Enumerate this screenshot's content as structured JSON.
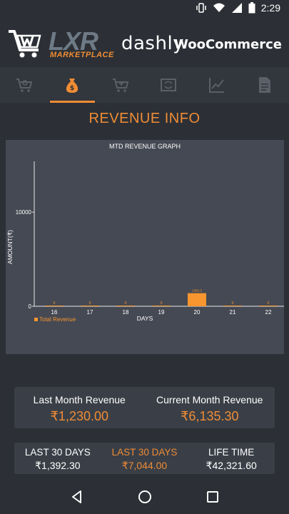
{
  "status_bar": {
    "time": "2:29",
    "icons": [
      "vibrate-icon",
      "wifi-icon",
      "signal-icon",
      "battery-icon"
    ]
  },
  "header": {
    "brand_main": "LXR",
    "brand_sub": "MARKETPLACE",
    "product": "dashly",
    "platform": "WooCommerce"
  },
  "tabs": [
    {
      "icon": "cart-search-icon",
      "active": false
    },
    {
      "icon": "money-bag-icon",
      "active": true
    },
    {
      "icon": "cart-plus-icon",
      "active": false
    },
    {
      "icon": "refresh-box-icon",
      "active": false
    },
    {
      "icon": "trend-chart-icon",
      "active": false
    },
    {
      "icon": "document-icon",
      "active": false
    }
  ],
  "section_title": "REVENUE INFO",
  "chart_data": {
    "type": "bar",
    "title": "MTD REVENUE GRAPH",
    "xlabel": "DAYS",
    "ylabel": "AMOUNT(₹)",
    "categories": [
      "16",
      "17",
      "18",
      "19",
      "20",
      "21",
      "22"
    ],
    "series": [
      {
        "name": "Total Revenue",
        "values": [
          0,
          0,
          0,
          0,
          1392.3,
          0,
          0
        ]
      }
    ],
    "data_labels": [
      "0",
      "0",
      "0",
      "0",
      "1392.3",
      "0",
      "0"
    ],
    "y_ticks": [
      0,
      10000
    ],
    "ylim": [
      0,
      15400
    ],
    "legend": "bottom-left",
    "grid": false,
    "bar_color": "#f7952e"
  },
  "summary": {
    "last_month_label": "Last Month Revenue",
    "last_month_value": "₹1,230.00",
    "current_month_label": "Current Month Revenue",
    "current_month_value": "₹6,135.30"
  },
  "stats": [
    {
      "label": "LAST 30 DAYS",
      "value": "₹1,392.30",
      "highlight": false
    },
    {
      "label": "LAST 30 DAYS",
      "value": "₹7,044.00",
      "highlight": true
    },
    {
      "label": "LIFE TIME",
      "value": "₹42,321.60",
      "highlight": false
    }
  ],
  "colors": {
    "accent": "#f08c34",
    "background": "#2c3036",
    "card": "#3a3f47",
    "chart_bg": "#454953"
  }
}
